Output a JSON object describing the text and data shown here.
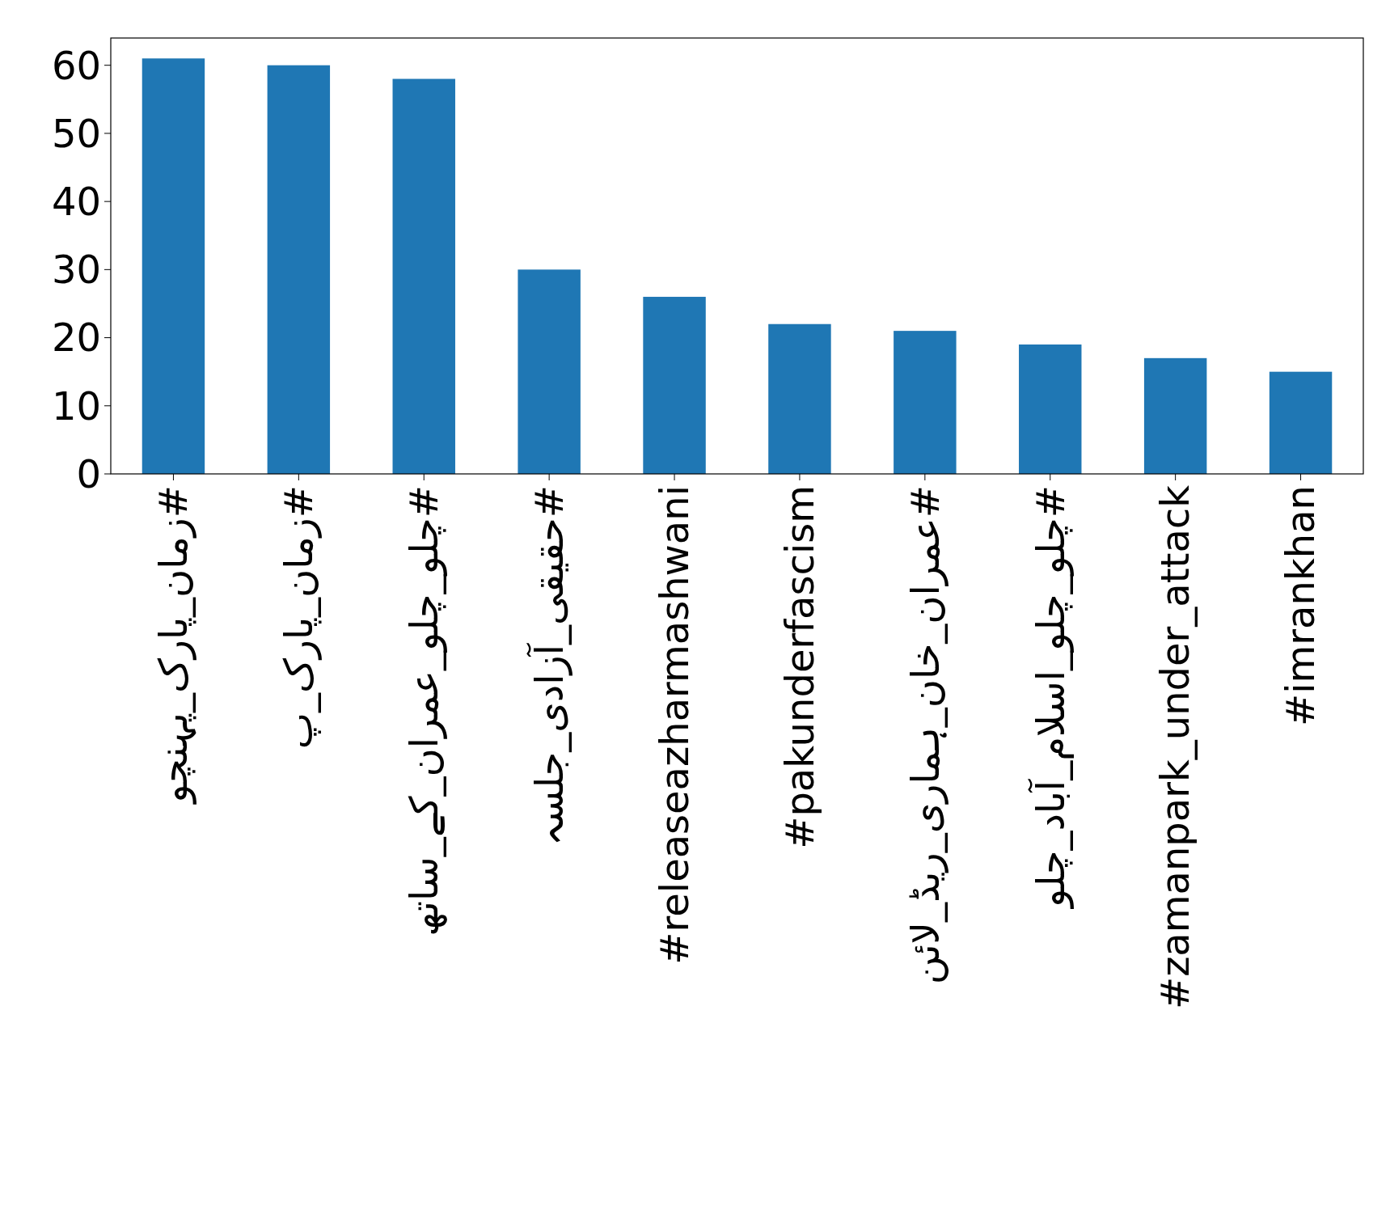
{
  "chart_data": {
    "type": "bar",
    "categories": [
      "#زمان_پارک_پہنچو",
      "#زمان_پارک_پ",
      "#چلو_چلو_عمران_کے_ساتھ",
      "#حقیقی_آزادی_جلسہ",
      "#releaseazharmashwani",
      "#pakunderfascism",
      "#عمران_خان_ہماری_ریڈ_لائن",
      "#چلو_چلو_اسلام_آباد_چلو",
      "#zamanpark_under_attack",
      "#imrankhan"
    ],
    "values": [
      61,
      60,
      58,
      30,
      26,
      22,
      21,
      19,
      17,
      15
    ],
    "color": "#1f77b4",
    "ylim": [
      0,
      64
    ],
    "yticks": [
      0,
      10,
      20,
      30,
      40,
      50,
      60
    ],
    "grid": false
  }
}
